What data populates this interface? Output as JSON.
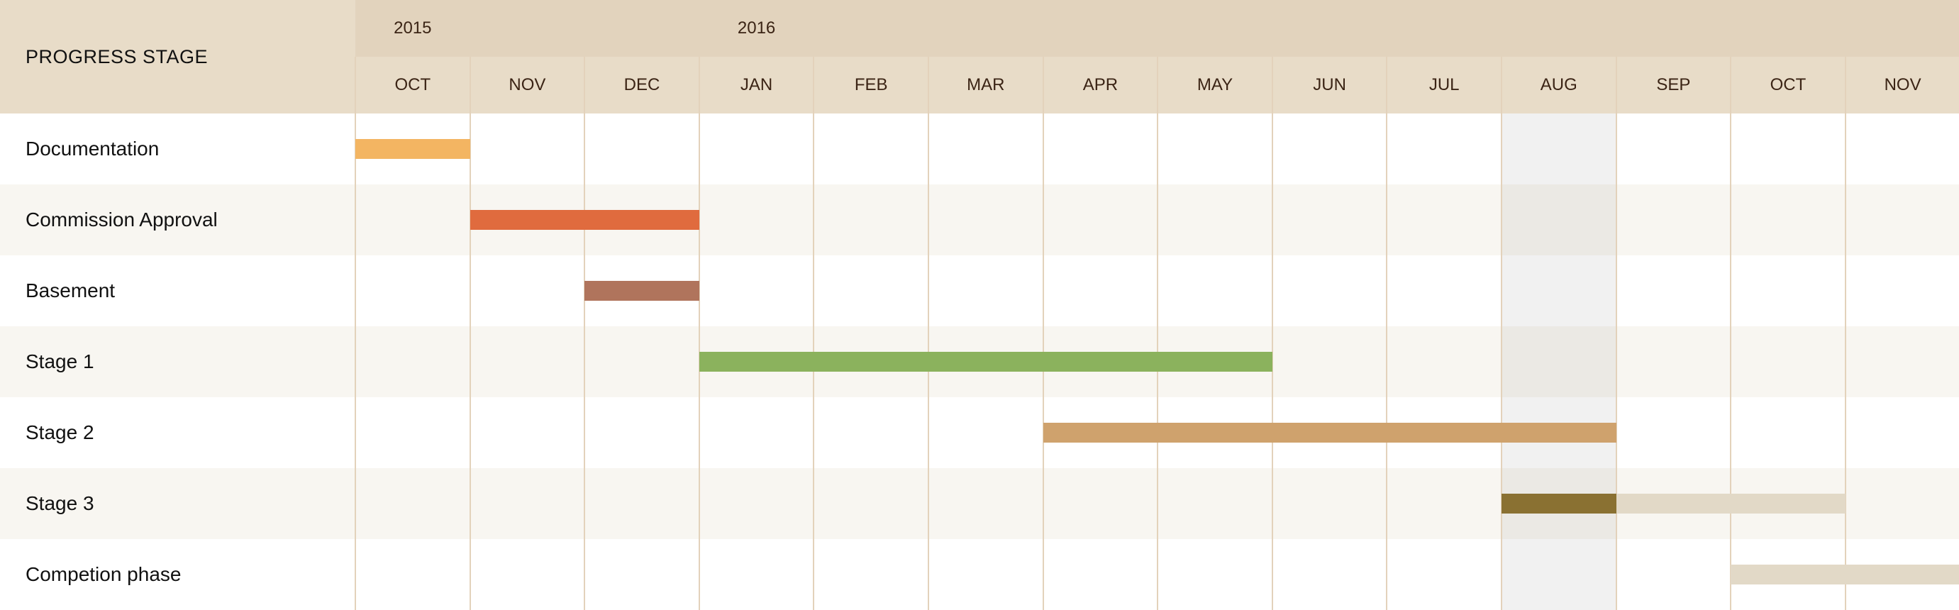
{
  "chart_data": {
    "type": "gantt",
    "corner_label": "PROGRESS STAGE",
    "years": [
      {
        "label": "2015",
        "month_index": 0
      },
      {
        "label": "2016",
        "month_index": 3
      }
    ],
    "months": [
      "OCT",
      "NOV",
      "DEC",
      "JAN",
      "FEB",
      "MAR",
      "APR",
      "MAY",
      "JUN",
      "JUL",
      "AUG",
      "SEP",
      "OCT",
      "NOV"
    ],
    "highlight_month_index": 10,
    "tasks": [
      {
        "name": "Documentation",
        "segments": [
          {
            "start": 0,
            "end": 1,
            "color": "#f3b562"
          }
        ]
      },
      {
        "name": "Commission Approval",
        "segments": [
          {
            "start": 1,
            "end": 3,
            "color": "#e06b3e"
          }
        ]
      },
      {
        "name": "Basement",
        "segments": [
          {
            "start": 2,
            "end": 3,
            "color": "#b0745c"
          }
        ]
      },
      {
        "name": "Stage 1",
        "segments": [
          {
            "start": 3,
            "end": 8,
            "color": "#8bb25d"
          }
        ]
      },
      {
        "name": "Stage 2",
        "segments": [
          {
            "start": 6,
            "end": 11,
            "color": "#cfa26d"
          }
        ]
      },
      {
        "name": "Stage 3",
        "segments": [
          {
            "start": 10,
            "end": 11,
            "color": "#8a7132"
          },
          {
            "start": 11,
            "end": 13,
            "color": "#e2d9c7"
          }
        ]
      },
      {
        "name": "Competion phase",
        "segments": [
          {
            "start": 12,
            "end": 14,
            "color": "#e2d9c7"
          }
        ]
      }
    ]
  }
}
